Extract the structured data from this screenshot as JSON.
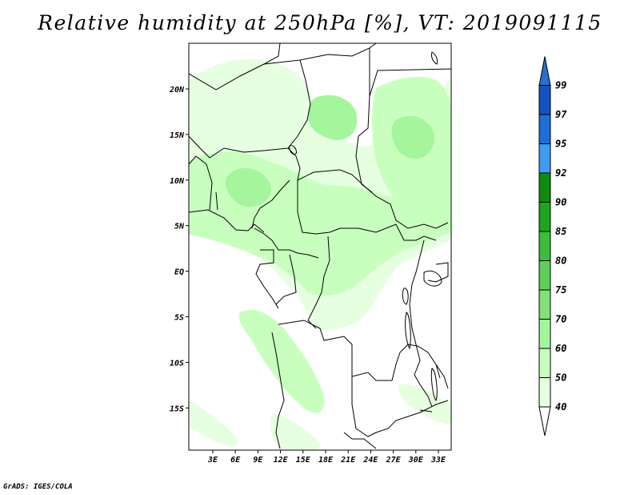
{
  "title": "Relative humidity at 250hPa [%], VT: 2019091115",
  "credit": "GrADS: IGES/COLA",
  "map": {
    "lon_labels": [
      "3E",
      "6E",
      "9E",
      "12E",
      "15E",
      "18E",
      "21E",
      "24E",
      "27E",
      "30E",
      "33E"
    ],
    "lat_labels": [
      "20N",
      "15N",
      "10N",
      "5N",
      "EQ",
      "5S",
      "10S",
      "15S"
    ],
    "colors": {
      "land_line": "#000000",
      "frame": "#000000"
    }
  },
  "colorbar": {
    "levels": [
      "40",
      "50",
      "60",
      "70",
      "75",
      "80",
      "85",
      "90",
      "92",
      "95",
      "97",
      "99"
    ],
    "colors": [
      "#ffffff",
      "#e6ffe1",
      "#c8ffbe",
      "#a5f59c",
      "#82e077",
      "#5ed05a",
      "#3cbd3c",
      "#1ea51e",
      "#0f8c0f",
      "#3f9cf0",
      "#1e6ed8",
      "#1452bf",
      "#2a6ecf"
    ]
  }
}
